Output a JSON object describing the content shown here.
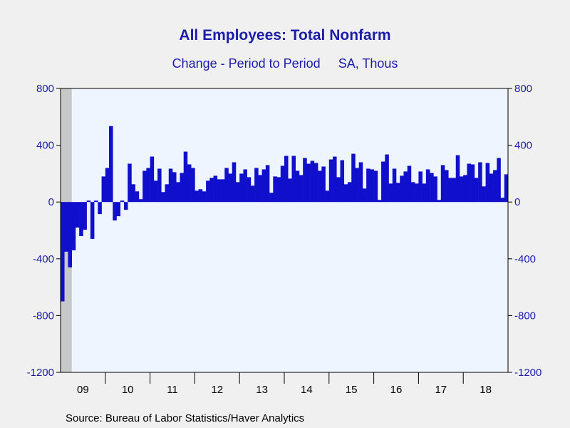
{
  "chart_data": {
    "type": "bar",
    "title": "All Employees: Total Nonfarm",
    "subtitle": "Change - Period to Period     SA, Thous",
    "source": "Source:  Bureau of Labor Statistics/Haver Analytics",
    "ylim": [
      -1200,
      800
    ],
    "yticks": [
      800,
      400,
      0,
      -400,
      -800,
      -1200
    ],
    "y_axes": "left and right, mirrored",
    "x_start": "2009-01",
    "x_end": "2018-12",
    "year_labels": [
      "09",
      "10",
      "11",
      "12",
      "13",
      "14",
      "15",
      "16",
      "17",
      "18"
    ],
    "recession_shading": {
      "start": "2009-01",
      "end": "2009-06"
    },
    "colors": {
      "bar": "#1010cc",
      "plot_bg": "#eef5ff",
      "recession": "#c8c8c8",
      "text": "#1c1caa"
    },
    "values": [
      -700,
      -350,
      -460,
      -340,
      -180,
      -240,
      -195,
      10,
      -260,
      10,
      -85,
      180,
      240,
      535,
      -130,
      -100,
      10,
      -55,
      270,
      125,
      75,
      20,
      220,
      240,
      320,
      150,
      235,
      70,
      125,
      235,
      210,
      140,
      205,
      355,
      265,
      240,
      80,
      90,
      75,
      150,
      170,
      185,
      160,
      160,
      240,
      200,
      280,
      140,
      200,
      230,
      175,
      115,
      240,
      190,
      230,
      260,
      65,
      180,
      175,
      255,
      325,
      165,
      325,
      220,
      190,
      310,
      270,
      290,
      275,
      220,
      250,
      80,
      300,
      320,
      175,
      295,
      125,
      140,
      340,
      240,
      280,
      95,
      235,
      230,
      220,
      15,
      285,
      335,
      130,
      235,
      135,
      185,
      215,
      255,
      140,
      130,
      215,
      130,
      230,
      205,
      180,
      15,
      260,
      225,
      170,
      170,
      330,
      180,
      190,
      270,
      265,
      170,
      280,
      110,
      275,
      200,
      225,
      310,
      30,
      195
    ]
  }
}
